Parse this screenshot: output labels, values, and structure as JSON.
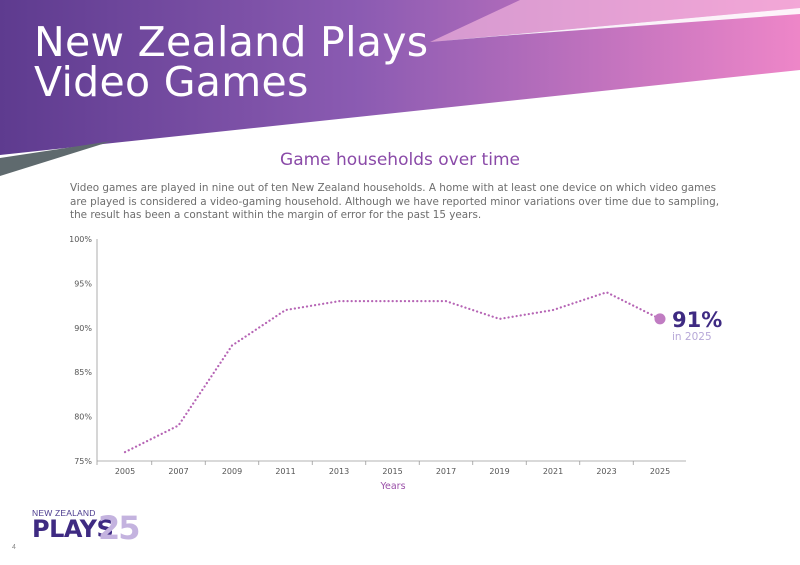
{
  "page": {
    "title_lines": [
      "New Zealand Plays",
      "Video Games"
    ],
    "chart_title": "Game households over time",
    "intro": "Video games are played in nine out of ten New Zealand households. A home with at least one device on which video games are played is considered a video-gaming household. Although we have reported minor variations over time due to sampling, the result has been a constant within the margin of error for the past 15 years.",
    "page_number": "4"
  },
  "highlight": {
    "value": "91%",
    "label": "in 2025"
  },
  "logo": {
    "small": "NEW ZEALAND",
    "word": "PLAYS",
    "number": "25"
  },
  "colors": {
    "banner_start": "#5e3b8f",
    "banner_end": "#ee86c8",
    "line": "#b665b5",
    "marker": "#c07cc2",
    "highlight_value": "#3e2a82",
    "axis_label": "#9a4fa8"
  },
  "chart_data": {
    "type": "line",
    "title": "Game households over time",
    "xlabel": "Years",
    "ylabel": "",
    "x": [
      2005,
      2007,
      2009,
      2011,
      2013,
      2015,
      2017,
      2019,
      2021,
      2023,
      2025
    ],
    "series": [
      {
        "values": [
          76,
          79,
          88,
          92,
          93,
          93,
          93,
          91,
          92,
          94,
          91
        ]
      }
    ],
    "ylim": [
      75,
      100
    ],
    "yticks": [
      "75%",
      "80%",
      "85%",
      "90%",
      "95%",
      "100%"
    ],
    "grid": false,
    "line_style": "dotted"
  }
}
